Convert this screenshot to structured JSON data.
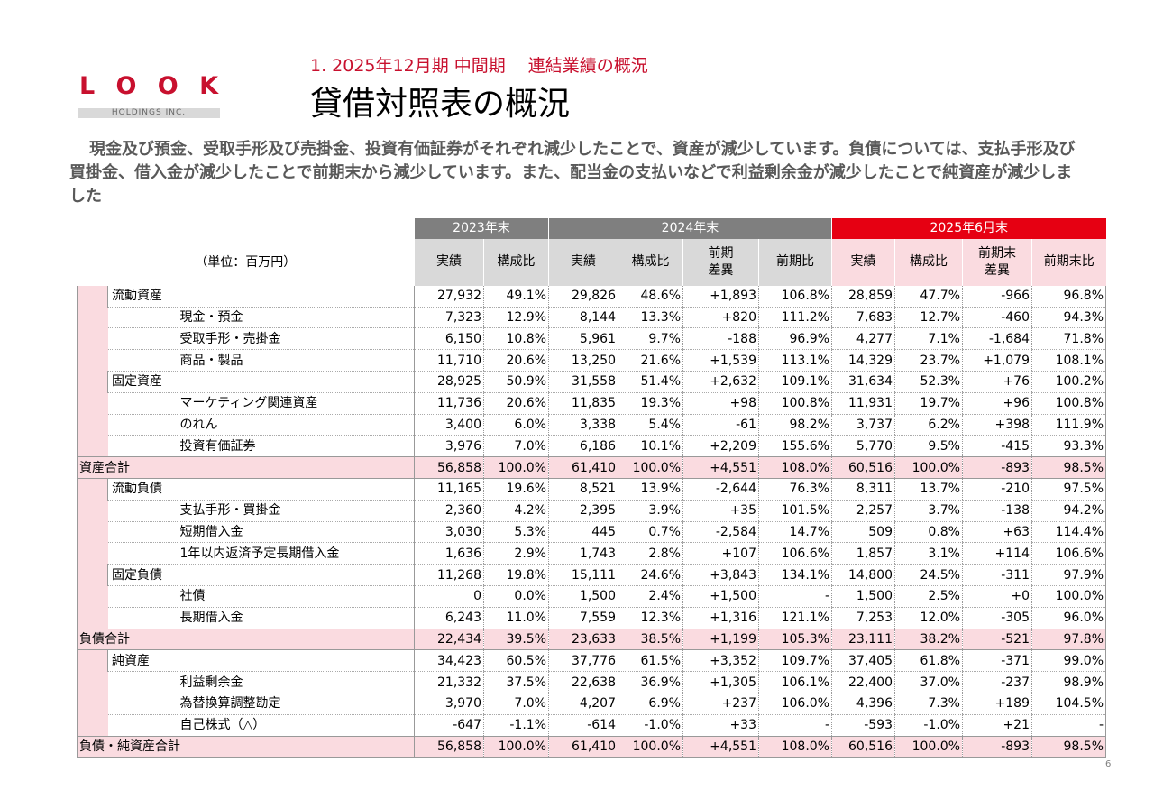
{
  "logo": {
    "letters": [
      "L",
      "O",
      "O",
      "K"
    ],
    "subtext": "HOLDINGS INC."
  },
  "header": {
    "subtitle": "1. 2025年12月期 中間期　 連結業績の概況",
    "title": "貸借対照表の概況"
  },
  "summary": "現金及び預金、受取手形及び売掛金、投資有価証券がそれぞれ減少したことで、資産が減少しています。負債については、支払手形及び買掛金、借入金が減少したことで前期末から減少しています。また、配当金の支払いなどで利益剰余金が減少したことで純資産が減少しました",
  "table": {
    "unit_label": "（単位：百万円）",
    "periods": [
      "2023年末",
      "2024年末",
      "2025年6月末"
    ],
    "sub_headers": {
      "p2023": [
        "実績",
        "構成比"
      ],
      "p2024": [
        "実績",
        "構成比",
        "前期\n差異",
        "前期比"
      ],
      "p2025": [
        "実績",
        "構成比",
        "前期末\n差異",
        "前期末比"
      ]
    },
    "rows": [
      {
        "name": "流動資産",
        "level": 1,
        "group": "assets",
        "v": [
          "27,932",
          "49.1%",
          "29,826",
          "48.6%",
          "+1,893",
          "106.8%",
          "28,859",
          "47.7%",
          "-966",
          "96.8%"
        ]
      },
      {
        "name": "現金・預金",
        "level": 2,
        "group": "assets",
        "v": [
          "7,323",
          "12.9%",
          "8,144",
          "13.3%",
          "+820",
          "111.2%",
          "7,683",
          "12.7%",
          "-460",
          "94.3%"
        ]
      },
      {
        "name": "受取手形・売掛金",
        "level": 2,
        "group": "assets",
        "v": [
          "6,150",
          "10.8%",
          "5,961",
          "9.7%",
          "-188",
          "96.9%",
          "4,277",
          "7.1%",
          "-1,684",
          "71.8%"
        ]
      },
      {
        "name": "商品・製品",
        "level": 2,
        "group": "assets",
        "v": [
          "11,710",
          "20.6%",
          "13,250",
          "21.6%",
          "+1,539",
          "113.1%",
          "14,329",
          "23.7%",
          "+1,079",
          "108.1%"
        ]
      },
      {
        "name": "固定資産",
        "level": 1,
        "group": "assets",
        "v": [
          "28,925",
          "50.9%",
          "31,558",
          "51.4%",
          "+2,632",
          "109.1%",
          "31,634",
          "52.3%",
          "+76",
          "100.2%"
        ]
      },
      {
        "name": "マーケティング関連資産",
        "level": 2,
        "group": "assets",
        "v": [
          "11,736",
          "20.6%",
          "11,835",
          "19.3%",
          "+98",
          "100.8%",
          "11,931",
          "19.7%",
          "+96",
          "100.8%"
        ]
      },
      {
        "name": "のれん",
        "level": 2,
        "group": "assets",
        "v": [
          "3,400",
          "6.0%",
          "3,338",
          "5.4%",
          "-61",
          "98.2%",
          "3,737",
          "6.2%",
          "+398",
          "111.9%"
        ]
      },
      {
        "name": "投資有価証券",
        "level": 2,
        "group": "assets",
        "v": [
          "3,976",
          "7.0%",
          "6,186",
          "10.1%",
          "+2,209",
          "155.6%",
          "5,770",
          "9.5%",
          "-415",
          "93.3%"
        ]
      },
      {
        "name": "資産合計",
        "level": 0,
        "group": "total",
        "v": [
          "56,858",
          "100.0%",
          "61,410",
          "100.0%",
          "+4,551",
          "108.0%",
          "60,516",
          "100.0%",
          "-893",
          "98.5%"
        ]
      },
      {
        "name": "流動負債",
        "level": 1,
        "group": "liab",
        "v": [
          "11,165",
          "19.6%",
          "8,521",
          "13.9%",
          "-2,644",
          "76.3%",
          "8,311",
          "13.7%",
          "-210",
          "97.5%"
        ]
      },
      {
        "name": "支払手形・買掛金",
        "level": 2,
        "group": "liab",
        "v": [
          "2,360",
          "4.2%",
          "2,395",
          "3.9%",
          "+35",
          "101.5%",
          "2,257",
          "3.7%",
          "-138",
          "94.2%"
        ]
      },
      {
        "name": "短期借入金",
        "level": 2,
        "group": "liab",
        "v": [
          "3,030",
          "5.3%",
          "445",
          "0.7%",
          "-2,584",
          "14.7%",
          "509",
          "0.8%",
          "+63",
          "114.4%"
        ]
      },
      {
        "name": "1年以内返済予定長期借入金",
        "level": 2,
        "group": "liab",
        "v": [
          "1,636",
          "2.9%",
          "1,743",
          "2.8%",
          "+107",
          "106.6%",
          "1,857",
          "3.1%",
          "+114",
          "106.6%"
        ]
      },
      {
        "name": "固定負債",
        "level": 1,
        "group": "liab",
        "v": [
          "11,268",
          "19.8%",
          "15,111",
          "24.6%",
          "+3,843",
          "134.1%",
          "14,800",
          "24.5%",
          "-311",
          "97.9%"
        ]
      },
      {
        "name": "社債",
        "level": 2,
        "group": "liab",
        "v": [
          "0",
          "0.0%",
          "1,500",
          "2.4%",
          "+1,500",
          "-",
          "1,500",
          "2.5%",
          "+0",
          "100.0%"
        ]
      },
      {
        "name": "長期借入金",
        "level": 2,
        "group": "liab",
        "v": [
          "6,243",
          "11.0%",
          "7,559",
          "12.3%",
          "+1,316",
          "121.1%",
          "7,253",
          "12.0%",
          "-305",
          "96.0%"
        ]
      },
      {
        "name": "負債合計",
        "level": 0,
        "group": "total",
        "v": [
          "22,434",
          "39.5%",
          "23,633",
          "38.5%",
          "+1,199",
          "105.3%",
          "23,111",
          "38.2%",
          "-521",
          "97.8%"
        ]
      },
      {
        "name": "純資産",
        "level": 1,
        "group": "eq",
        "v": [
          "34,423",
          "60.5%",
          "37,776",
          "61.5%",
          "+3,352",
          "109.7%",
          "37,405",
          "61.8%",
          "-371",
          "99.0%"
        ]
      },
      {
        "name": "利益剰余金",
        "level": 2,
        "group": "eq",
        "v": [
          "21,332",
          "37.5%",
          "22,638",
          "36.9%",
          "+1,305",
          "106.1%",
          "22,400",
          "37.0%",
          "-237",
          "98.9%"
        ]
      },
      {
        "name": "為替換算調整勘定",
        "level": 2,
        "group": "eq",
        "v": [
          "3,970",
          "7.0%",
          "4,207",
          "6.9%",
          "+237",
          "106.0%",
          "4,396",
          "7.3%",
          "+189",
          "104.5%"
        ]
      },
      {
        "name": "自己株式（△）",
        "level": 2,
        "group": "eq",
        "v": [
          "-647",
          "-1.1%",
          "-614",
          "-1.0%",
          "+33",
          "-",
          "-593",
          "-1.0%",
          "+21",
          "-"
        ]
      },
      {
        "name": "負債・純資産合計",
        "level": 0,
        "group": "total",
        "v": [
          "56,858",
          "100.0%",
          "61,410",
          "100.0%",
          "+4,551",
          "108.0%",
          "60,516",
          "100.0%",
          "-893",
          "98.5%"
        ]
      }
    ]
  },
  "page_number": "6",
  "colors": {
    "accent": "#c8102e",
    "header_grey": "#7f7f7f",
    "header_red": "#e60012",
    "total_pink": "#fadbe0"
  }
}
